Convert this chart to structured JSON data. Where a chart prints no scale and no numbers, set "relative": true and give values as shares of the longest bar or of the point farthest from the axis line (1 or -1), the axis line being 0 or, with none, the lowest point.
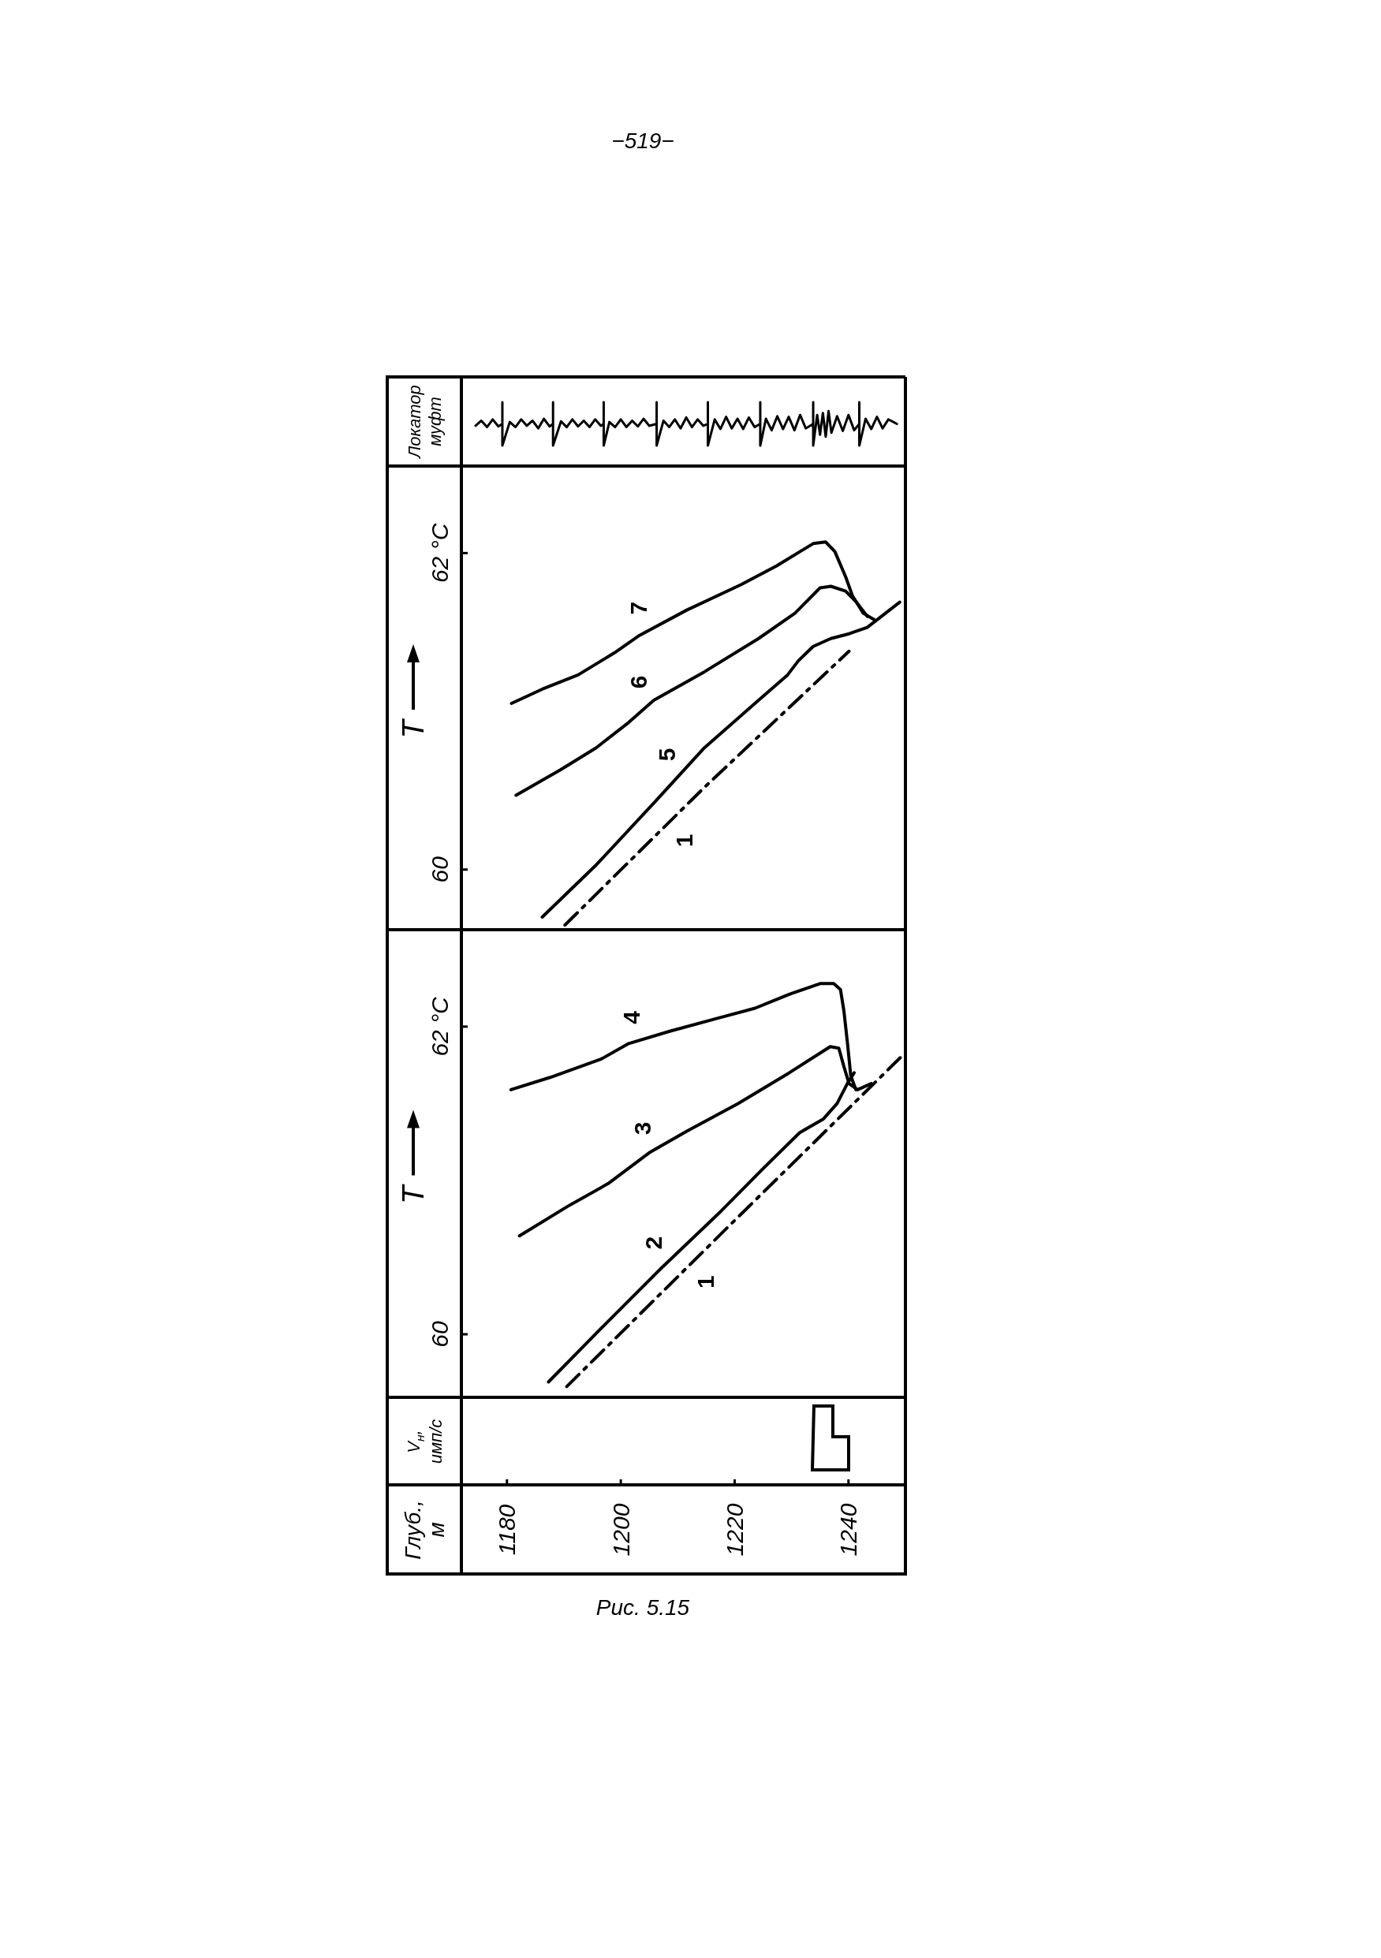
{
  "chart_data": [
    {
      "type": "line",
      "relative": true,
      "ylabel": "Локатор муфт",
      "xlim": [
        1172,
        1250
      ],
      "tick_labels": false,
      "series": [
        {
          "color": "#000000",
          "x": [
            1174.5,
            1175.5,
            1176.5,
            1177.5,
            1178.5,
            1179.2,
            1179.2,
            1179.2,
            1180.5,
            1181.5,
            1182.5,
            1183.5,
            1184.5,
            1185.5,
            1186.5,
            1187.5,
            1188.1,
            1188.1,
            1188.1,
            1189.5,
            1190.5,
            1191.5,
            1192.5,
            1193.5,
            1194.5,
            1195.5,
            1196.5,
            1197.0,
            1197.0,
            1197.0,
            1198.0,
            1199.0,
            1200.0,
            1201.0,
            1202.0,
            1203.0,
            1204.0,
            1205.0,
            1206.3,
            1206.3,
            1206.3,
            1207.5,
            1208.5,
            1209.5,
            1210.5,
            1211.5,
            1212.5,
            1213.5,
            1214.5,
            1215.3,
            1215.3,
            1215.3,
            1216.5,
            1217.5,
            1218.5,
            1219.5,
            1220.5,
            1221.5,
            1222.5,
            1223.5,
            1224.5,
            1224.5,
            1224.5,
            1225.5,
            1226.5,
            1227.5,
            1228.5,
            1229.5,
            1230.5,
            1231.5,
            1232.5,
            1233.8,
            1233.8,
            1233.8,
            1234.5,
            1235.0,
            1235.5,
            1236.0,
            1236.5,
            1237.0,
            1238.0,
            1239.0,
            1240.0,
            1241.0,
            1241.9,
            1241.9,
            1241.9,
            1243.0,
            1244.0,
            1245.0,
            1246.0,
            1247.0,
            1248.5
          ],
          "values": [
            0.63,
            0.71,
            0.61,
            0.73,
            0.62,
            0.66,
            1,
            0.32,
            0.69,
            0.61,
            0.73,
            0.63,
            0.71,
            0.59,
            0.74,
            0.62,
            0.66,
            1,
            0.32,
            0.7,
            0.61,
            0.73,
            0.62,
            0.71,
            0.61,
            0.73,
            0.63,
            0.66,
            1,
            0.32,
            0.69,
            0.61,
            0.73,
            0.61,
            0.71,
            0.62,
            0.74,
            0.63,
            0.66,
            1,
            0.32,
            0.71,
            0.61,
            0.73,
            0.59,
            0.76,
            0.61,
            0.73,
            0.63,
            0.66,
            1,
            0.32,
            0.73,
            0.58,
            0.77,
            0.59,
            0.74,
            0.58,
            0.76,
            0.61,
            0.66,
            1,
            0.32,
            0.74,
            0.56,
            0.78,
            0.58,
            0.77,
            0.56,
            0.8,
            0.59,
            0.66,
            1,
            0.32,
            0.8,
            0.49,
            0.83,
            0.46,
            0.86,
            0.52,
            0.78,
            0.55,
            0.8,
            0.56,
            0.66,
            1,
            0.32,
            0.74,
            0.58,
            0.77,
            0.59,
            0.73,
            0.66
          ]
        }
      ]
    },
    {
      "type": "line",
      "ylabel": "T",
      "xlim": [
        1172,
        1250
      ],
      "ylim": [
        59.62,
        62.55
      ],
      "yticks": [
        60,
        {
          "value": 62,
          "label": "62 °C"
        }
      ],
      "tick_labels": "y",
      "grid": false,
      "legend": false,
      "series": [
        {
          "name": "7",
          "color": "#000000",
          "x": [
            1180.8,
            1186.2,
            1192.5,
            1198.9,
            1203.3,
            1211.6,
            1221.1,
            1227.4,
            1233.8,
            1236.0,
            1237.6,
            1239.5,
            1240.7,
            1242.6,
            1244.5
          ],
          "values": [
            61.05,
            61.14,
            61.23,
            61.37,
            61.48,
            61.64,
            61.8,
            61.92,
            62.06,
            62.07,
            62.01,
            61.85,
            61.73,
            61.62,
            61.58
          ]
        },
        {
          "name": "6",
          "color": "#000000",
          "x": [
            1181.6,
            1189.4,
            1195.7,
            1201.4,
            1205.8,
            1214.7,
            1224.2,
            1230.6,
            1235.0,
            1236.9,
            1239.5,
            1241.4,
            1243.3
          ],
          "values": [
            60.47,
            60.63,
            60.77,
            60.93,
            61.07,
            61.25,
            61.46,
            61.62,
            61.78,
            61.79,
            61.76,
            61.69,
            61.6
          ]
        },
        {
          "name": "5",
          "color": "#000000",
          "x": [
            1186.2,
            1195.7,
            1205.8,
            1214.7,
            1224.2,
            1229.3,
            1231.2,
            1233.8,
            1236.9,
            1240.1,
            1243.3,
            1249.0
          ],
          "values": [
            59.7,
            60.03,
            60.42,
            60.77,
            61.07,
            61.23,
            61.32,
            61.41,
            61.46,
            61.49,
            61.53,
            61.69
          ]
        },
        {
          "name": "1",
          "color": "#000000",
          "line_style": "dashed",
          "x": [
            1190.2,
            1214.7,
            1240.1
          ],
          "values": [
            59.65,
            60.52,
            61.38
          ]
        }
      ]
    },
    {
      "type": "line",
      "ylabel": "T",
      "annotations": [
        "V$_{н}$, имп/с",
        "Рис. 5.15",
        "−519−",
        "Глуб., м"
      ],
      "xlim": [
        1172,
        1250
      ],
      "xticks": [
        1180,
        1200,
        1220,
        1240
      ],
      "ylim": [
        59.59,
        62.63
      ],
      "yticks": [
        60,
        {
          "value": 62,
          "label": "62 °C"
        }
      ],
      "grid": false,
      "series": [
        {
          "name": "4",
          "color": "#000000",
          "x": [
            1180.7,
            1187.6,
            1196.6,
            1201.4,
            1208.6,
            1217.6,
            1223.6,
            1229.6,
            1235.0,
            1237.4,
            1238.6,
            1239.2,
            1239.8,
            1240.4,
            1241.3
          ],
          "values": [
            61.59,
            61.67,
            61.79,
            61.89,
            61.97,
            62.06,
            62.12,
            62.21,
            62.28,
            62.28,
            62.24,
            62.1,
            61.9,
            61.68,
            61.59
          ]
        },
        {
          "name": "3",
          "color": "#000000",
          "x": [
            1182.2,
            1190.6,
            1197.8,
            1205.0,
            1211.6,
            1220.6,
            1229.6,
            1236.8,
            1238.3,
            1239.2,
            1240.1,
            1241.6,
            1244.0
          ],
          "values": [
            60.64,
            60.83,
            60.98,
            61.18,
            61.32,
            61.5,
            61.7,
            61.87,
            61.86,
            61.74,
            61.63,
            61.59,
            61.63
          ]
        },
        {
          "name": "2",
          "color": "#000000",
          "x": [
            1187.3,
            1196.6,
            1207.4,
            1217.6,
            1224.8,
            1231.4,
            1235.6,
            1238.0,
            1239.8,
            1241.0
          ],
          "values": [
            59.69,
            60.04,
            60.44,
            60.8,
            61.07,
            61.31,
            61.4,
            61.5,
            61.63,
            61.7
          ]
        },
        {
          "name": "1",
          "color": "#000000",
          "line_style": "dashed",
          "x": [
            1190.5,
            1220.0,
            1249.7
          ],
          "values": [
            59.66,
            60.74,
            61.82
          ]
        }
      ]
    }
  ]
}
